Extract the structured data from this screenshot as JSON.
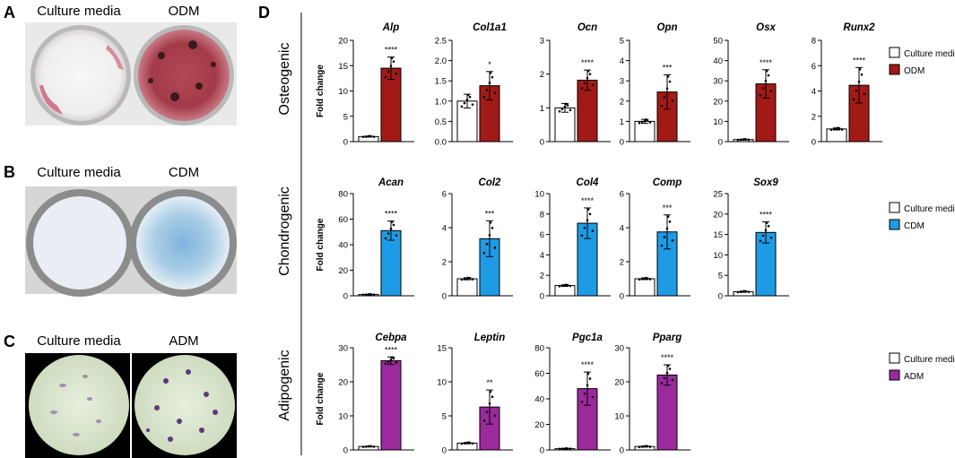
{
  "panels": {
    "A": {
      "letter": "A",
      "left": "Culture media",
      "right": "ODM"
    },
    "B": {
      "letter": "B",
      "left": "Culture media",
      "right": "CDM"
    },
    "C": {
      "letter": "C",
      "left": "Culture media",
      "right": "ADM"
    },
    "D": {
      "letter": "D"
    }
  },
  "colors": {
    "control": "#ffffff",
    "osteo": "#a11a16",
    "chondro": "#1e9be5",
    "adipo": "#9b2a9c"
  },
  "chart_data": [
    {
      "type": "bar",
      "group": "Osteogenic",
      "legend": [
        "Culture media",
        "ODM"
      ],
      "ylabel": "Fold change",
      "charts": [
        {
          "title": "Alp",
          "ylim": [
            0,
            20
          ],
          "ticks": [
            0,
            5,
            10,
            15,
            20
          ],
          "tick_labels": [
            "0",
            "5",
            "10",
            "15",
            "20"
          ],
          "categories": [
            "Culture media",
            "ODM"
          ],
          "values": [
            1.0,
            14.5
          ],
          "err": [
            0.1,
            2.2
          ],
          "significance": "****"
        },
        {
          "title": "Col1a1",
          "ylim": [
            0,
            2.5
          ],
          "ticks": [
            0,
            0.5,
            1,
            1.5,
            2,
            2.5
          ],
          "tick_labels": [
            "0.0",
            "0.5",
            "1.0",
            "1.5",
            "2.0",
            "2.5"
          ],
          "categories": [
            "Culture media",
            "ODM"
          ],
          "values": [
            1.0,
            1.38
          ],
          "err": [
            0.17,
            0.35
          ],
          "significance": "*"
        },
        {
          "title": "Ocn",
          "ylim": [
            0,
            3
          ],
          "ticks": [
            0,
            1,
            2,
            3
          ],
          "tick_labels": [
            "0",
            "1",
            "2",
            "3"
          ],
          "categories": [
            "Culture media",
            "ODM"
          ],
          "values": [
            1.0,
            1.82
          ],
          "err": [
            0.13,
            0.3
          ],
          "significance": "****"
        },
        {
          "title": "Opn",
          "ylim": [
            0,
            5
          ],
          "ticks": [
            0,
            1,
            2,
            3,
            4,
            5
          ],
          "tick_labels": [
            "0",
            "1",
            "2",
            "3",
            "4",
            "5"
          ],
          "categories": [
            "Culture media",
            "ODM"
          ],
          "values": [
            1.0,
            2.45
          ],
          "err": [
            0.1,
            0.85
          ],
          "significance": "***"
        },
        {
          "title": "Osx",
          "ylim": [
            0,
            50
          ],
          "ticks": [
            0,
            10,
            20,
            30,
            40,
            50
          ],
          "tick_labels": [
            "0",
            "10",
            "20",
            "30",
            "40",
            "50"
          ],
          "categories": [
            "Culture media",
            "ODM"
          ],
          "values": [
            1.0,
            28.5
          ],
          "err": [
            0.2,
            7.0
          ],
          "significance": "****"
        },
        {
          "title": "Runx2",
          "ylim": [
            0,
            8
          ],
          "ticks": [
            0,
            2,
            4,
            6,
            8
          ],
          "tick_labels": [
            "0",
            "2",
            "4",
            "6",
            "8"
          ],
          "categories": [
            "Culture media",
            "ODM"
          ],
          "values": [
            1.0,
            4.45
          ],
          "err": [
            0.08,
            1.4
          ],
          "significance": "****"
        }
      ]
    },
    {
      "type": "bar",
      "group": "Chondrogenic",
      "legend": [
        "Culture media",
        "CDM"
      ],
      "ylabel": "Fold change",
      "charts": [
        {
          "title": "Acan",
          "ylim": [
            0,
            80
          ],
          "ticks": [
            0,
            20,
            40,
            60,
            80
          ],
          "tick_labels": [
            "0",
            "20",
            "40",
            "60",
            "80"
          ],
          "categories": [
            "Culture media",
            "CDM"
          ],
          "values": [
            1.0,
            51.0
          ],
          "err": [
            0.2,
            7.5
          ],
          "significance": "****"
        },
        {
          "title": "Col2",
          "ylim": [
            0,
            6
          ],
          "ticks": [
            0,
            2,
            4,
            6
          ],
          "tick_labels": [
            "0",
            "2",
            "4",
            "6"
          ],
          "categories": [
            "Culture media",
            "CDM"
          ],
          "values": [
            1.0,
            3.35
          ],
          "err": [
            0.06,
            1.05
          ],
          "significance": "***"
        },
        {
          "title": "Col4",
          "ylim": [
            0,
            10
          ],
          "ticks": [
            0,
            2,
            4,
            6,
            8,
            10
          ],
          "tick_labels": [
            "0",
            "2",
            "4",
            "6",
            "8",
            "10"
          ],
          "categories": [
            "Culture media",
            "CDM"
          ],
          "values": [
            1.0,
            7.1
          ],
          "err": [
            0.08,
            1.5
          ],
          "significance": "****"
        },
        {
          "title": "Comp",
          "ylim": [
            0,
            6
          ],
          "ticks": [
            0,
            2,
            4,
            6
          ],
          "tick_labels": [
            "0",
            "2",
            "4",
            "6"
          ],
          "categories": [
            "Culture media",
            "CDM"
          ],
          "values": [
            1.0,
            3.75
          ],
          "err": [
            0.05,
            1.0
          ],
          "significance": "***"
        },
        {
          "title": "Sox9",
          "ylim": [
            0,
            25
          ],
          "ticks": [
            0,
            5,
            10,
            15,
            20,
            25
          ],
          "tick_labels": [
            "0",
            "5",
            "10",
            "15",
            "20",
            "25"
          ],
          "categories": [
            "Culture media",
            "CDM"
          ],
          "values": [
            1.0,
            15.5
          ],
          "err": [
            0.15,
            2.6
          ],
          "significance": "****"
        }
      ]
    },
    {
      "type": "bar",
      "group": "Adipogenic",
      "legend": [
        "Culture media",
        "ADM"
      ],
      "ylabel": "Fold change",
      "charts": [
        {
          "title": "Cebpa",
          "ylim": [
            0,
            30
          ],
          "ticks": [
            0,
            10,
            20,
            30
          ],
          "tick_labels": [
            "0",
            "10",
            "20",
            "30"
          ],
          "categories": [
            "Culture media",
            "ADM"
          ],
          "values": [
            1.0,
            26.2
          ],
          "err": [
            0.1,
            1.1
          ],
          "significance": "****"
        },
        {
          "title": "Leptin",
          "ylim": [
            0,
            15
          ],
          "ticks": [
            0,
            5,
            10,
            15
          ],
          "tick_labels": [
            "0",
            "5",
            "10",
            "15"
          ],
          "categories": [
            "Culture media",
            "ADM"
          ],
          "values": [
            1.0,
            6.3
          ],
          "err": [
            0.1,
            2.5
          ],
          "significance": "**"
        },
        {
          "title": "Pgc1a",
          "ylim": [
            0,
            80
          ],
          "ticks": [
            0,
            20,
            40,
            60,
            80
          ],
          "tick_labels": [
            "0",
            "20",
            "40",
            "60",
            "80"
          ],
          "categories": [
            "Culture media",
            "ADM"
          ],
          "values": [
            1.0,
            48.0
          ],
          "err": [
            0.2,
            13.0
          ],
          "significance": "****"
        },
        {
          "title": "Pparg",
          "ylim": [
            0,
            30
          ],
          "ticks": [
            0,
            10,
            20,
            30
          ],
          "tick_labels": [
            "0",
            "10",
            "20",
            "30"
          ],
          "categories": [
            "Culture media",
            "ADM"
          ],
          "values": [
            1.0,
            22.0
          ],
          "err": [
            0.15,
            3.0
          ],
          "significance": "****"
        }
      ]
    }
  ]
}
